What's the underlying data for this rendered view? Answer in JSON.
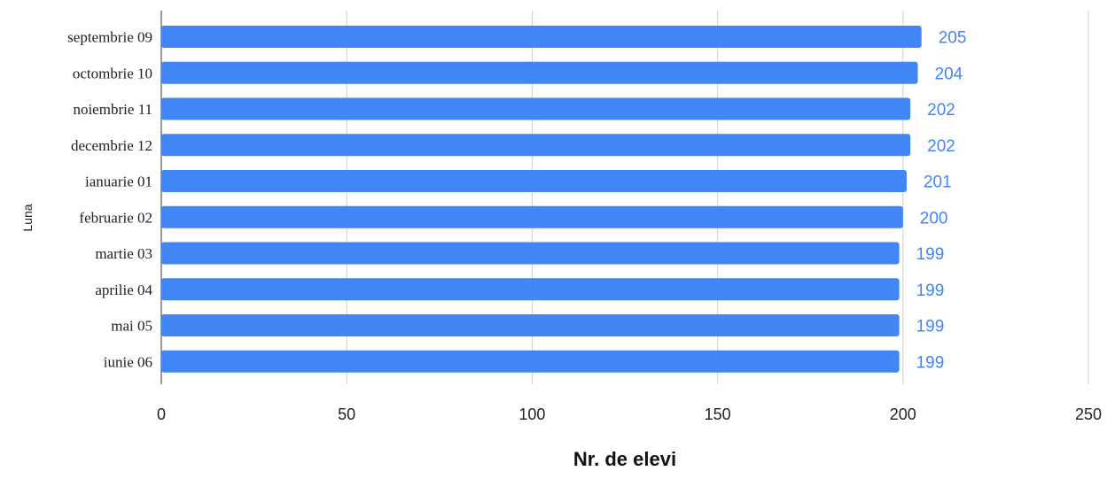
{
  "chart_data": {
    "type": "bar",
    "orientation": "horizontal",
    "categories": [
      "septembrie 09",
      "octombrie 10",
      "noiembrie 11",
      "decembrie 12",
      "ianuarie 01",
      "februarie 02",
      "martie 03",
      "aprilie 04",
      "mai 05",
      "iunie 06"
    ],
    "values": [
      205,
      204,
      202,
      202,
      201,
      200,
      199,
      199,
      199,
      199
    ],
    "xlabel": "Nr. de elevi",
    "ylabel": "Luna",
    "xlim": [
      0,
      250
    ],
    "xticks": [
      "0",
      "50",
      "100",
      "150",
      "200",
      "250"
    ],
    "grid": true,
    "legend": "none",
    "colors": {
      "bar": "#4285f4",
      "data_label": "#4285f4",
      "gridline": "#d0d0d0"
    }
  }
}
